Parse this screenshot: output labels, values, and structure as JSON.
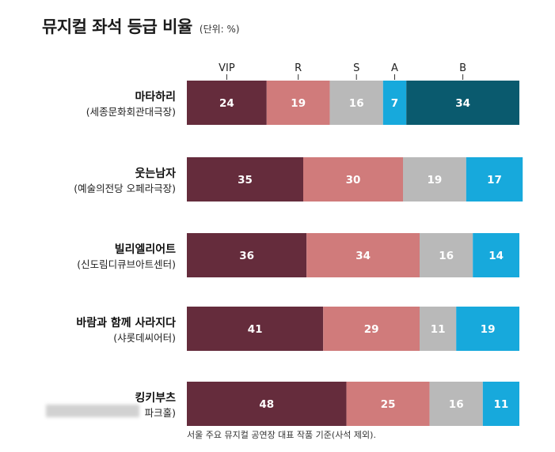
{
  "title": "뮤지컬 좌석 등급 비율",
  "unit": "(단위: %)",
  "footnote": "서울 주요 뮤지컬 공연장 대표 작품 기준(사석 제외).",
  "chart_data": {
    "type": "bar",
    "orientation": "horizontal",
    "stacked": "100%",
    "title": "뮤지컬 좌석 등급 비율",
    "unit": "(단위: %)",
    "legend": [
      "VIP",
      "R",
      "S",
      "A",
      "B"
    ],
    "legend_placement": "top",
    "colors": {
      "VIP": "#652c3c",
      "R": "#d07b7b",
      "S": "#b9b9b9",
      "A": "#17a9dc",
      "B": "#0a5a6e"
    },
    "categories": [
      {
        "name": "마타하리",
        "venue": "(세종문화회관대극장)"
      },
      {
        "name": "웃는남자",
        "venue": "(예술의전당 오페라극장)"
      },
      {
        "name": "빌리엘리어트",
        "venue": "(신도림디큐브아트센터)"
      },
      {
        "name": "바람과 함께 사라지다",
        "venue": "(샤롯데씨어터)"
      },
      {
        "name": "킹키부츠",
        "venue": "파크홀)"
      }
    ],
    "series": [
      {
        "name": "VIP",
        "values": [
          24,
          35,
          36,
          41,
          48
        ]
      },
      {
        "name": "R",
        "values": [
          19,
          30,
          34,
          29,
          25
        ]
      },
      {
        "name": "S",
        "values": [
          16,
          19,
          16,
          11,
          16
        ]
      },
      {
        "name": "A",
        "values": [
          7,
          17,
          14,
          19,
          11
        ]
      },
      {
        "name": "B",
        "values": [
          34,
          0,
          0,
          0,
          0
        ]
      }
    ],
    "xlim": [
      0,
      100
    ],
    "grid": false
  }
}
